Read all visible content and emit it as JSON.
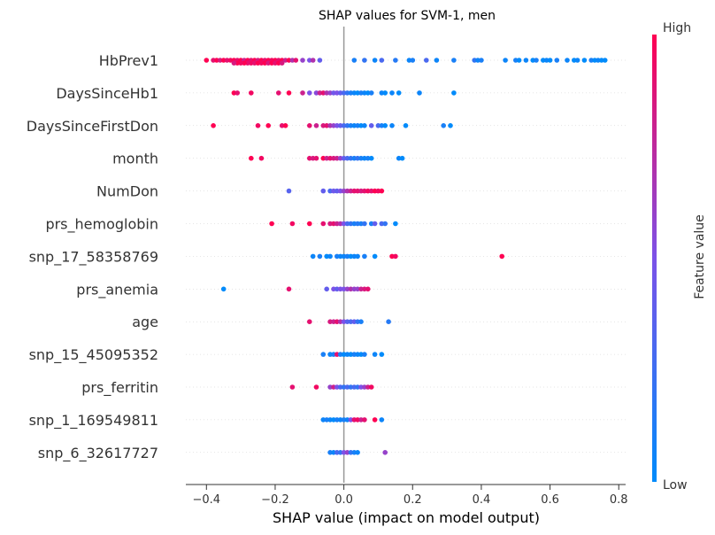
{
  "chart_data": {
    "type": "scatter",
    "subtype": "shap-beeswarm",
    "title": "SHAP values for SVM-1, men",
    "xlabel": "SHAP value (impact on model output)",
    "xlim": [
      -0.46,
      0.82
    ],
    "xticks": [
      -0.4,
      -0.2,
      0.0,
      0.2,
      0.4,
      0.6,
      0.8
    ],
    "xtick_labels": [
      "−0.4",
      "−0.2",
      "0.0",
      "0.2",
      "0.4",
      "0.6",
      "0.8"
    ],
    "colorbar": {
      "label": "Feature value",
      "high_label": "High",
      "low_label": "Low",
      "low_color": "#008bfb",
      "mid_color": "#7c52e8",
      "high_color": "#ff0052"
    },
    "zero_line": 0.0,
    "features": [
      {
        "name": "HbPrev1",
        "points": [
          [
            -0.4,
            1
          ],
          [
            -0.38,
            0.9
          ],
          [
            -0.37,
            1
          ],
          [
            -0.36,
            0.85
          ],
          [
            -0.35,
            1
          ],
          [
            -0.34,
            0.9
          ],
          [
            -0.33,
            0.95
          ],
          [
            -0.32,
            1
          ],
          [
            -0.31,
            0.9
          ],
          [
            -0.3,
            1
          ],
          [
            -0.29,
            0.8
          ],
          [
            -0.28,
            1
          ],
          [
            -0.27,
            0.9
          ],
          [
            -0.26,
            1
          ],
          [
            -0.25,
            0.85
          ],
          [
            -0.24,
            1
          ],
          [
            -0.23,
            0.9
          ],
          [
            -0.22,
            1
          ],
          [
            -0.21,
            0.95
          ],
          [
            -0.2,
            1
          ],
          [
            -0.19,
            0.9
          ],
          [
            -0.18,
            1
          ],
          [
            -0.17,
            0.8
          ],
          [
            -0.16,
            1
          ],
          [
            -0.15,
            0.7
          ],
          [
            -0.14,
            0.9
          ],
          [
            -0.12,
            0.6
          ],
          [
            -0.1,
            0.5
          ],
          [
            -0.09,
            0.7
          ],
          [
            -0.07,
            0.4
          ],
          [
            -0.27,
            0.95
          ],
          [
            -0.26,
            0.9
          ],
          [
            -0.25,
            1
          ],
          [
            -0.24,
            0.95
          ],
          [
            -0.23,
            1
          ],
          [
            -0.22,
            0.85
          ],
          [
            -0.21,
            1
          ],
          [
            -0.2,
            0.9
          ],
          [
            -0.19,
            1
          ],
          [
            -0.18,
            0.85
          ],
          [
            -0.28,
            0.9
          ],
          [
            -0.29,
            1
          ],
          [
            -0.3,
            0.95
          ],
          [
            -0.31,
            1
          ],
          [
            -0.32,
            0.85
          ],
          [
            0.03,
            0.1
          ],
          [
            0.06,
            0.2
          ],
          [
            0.09,
            0.05
          ],
          [
            0.11,
            0.3
          ],
          [
            0.15,
            0.15
          ],
          [
            0.19,
            0.05
          ],
          [
            0.2,
            0.1
          ],
          [
            0.24,
            0.3
          ],
          [
            0.27,
            0.05
          ],
          [
            0.32,
            0.1
          ],
          [
            0.38,
            0.2
          ],
          [
            0.39,
            0.05
          ],
          [
            0.4,
            0.1
          ],
          [
            0.47,
            0.05
          ],
          [
            0.5,
            0.1
          ],
          [
            0.51,
            0.0
          ],
          [
            0.53,
            0.05
          ],
          [
            0.55,
            0.0
          ],
          [
            0.56,
            0.1
          ],
          [
            0.58,
            0.0
          ],
          [
            0.59,
            0.05
          ],
          [
            0.6,
            0.0
          ],
          [
            0.62,
            0.1
          ],
          [
            0.65,
            0.05
          ],
          [
            0.67,
            0.0
          ],
          [
            0.68,
            0.05
          ],
          [
            0.7,
            0.0
          ],
          [
            0.72,
            0.1
          ],
          [
            0.73,
            0.0
          ],
          [
            0.74,
            0.05
          ],
          [
            0.75,
            0.0
          ],
          [
            0.76,
            0.0
          ]
        ]
      },
      {
        "name": "DaysSinceHb1",
        "points": [
          [
            -0.32,
            1
          ],
          [
            -0.31,
            0.9
          ],
          [
            -0.27,
            0.95
          ],
          [
            -0.19,
            0.9
          ],
          [
            -0.16,
            1
          ],
          [
            -0.12,
            0.8
          ],
          [
            -0.1,
            0.5
          ],
          [
            -0.08,
            0.55
          ],
          [
            -0.07,
            0.8
          ],
          [
            -0.06,
            0.9
          ],
          [
            -0.05,
            0.7
          ],
          [
            -0.04,
            0.6
          ],
          [
            -0.03,
            0.45
          ],
          [
            -0.02,
            0.5
          ],
          [
            -0.01,
            0.4
          ],
          [
            0.0,
            0.3
          ],
          [
            0.01,
            0.2
          ],
          [
            0.02,
            0.1
          ],
          [
            0.03,
            0.05
          ],
          [
            0.04,
            0.0
          ],
          [
            0.05,
            0.1
          ],
          [
            0.06,
            0.05
          ],
          [
            0.07,
            0.0
          ],
          [
            0.08,
            0.1
          ],
          [
            0.11,
            0.05
          ],
          [
            0.12,
            0.0
          ],
          [
            0.14,
            0.05
          ],
          [
            0.16,
            0.0
          ],
          [
            0.22,
            0.05
          ],
          [
            0.32,
            0.0
          ]
        ]
      },
      {
        "name": "DaysSinceFirstDon",
        "points": [
          [
            -0.38,
            1
          ],
          [
            -0.25,
            0.95
          ],
          [
            -0.22,
            1
          ],
          [
            -0.18,
            0.9
          ],
          [
            -0.17,
            1
          ],
          [
            -0.1,
            0.9
          ],
          [
            -0.08,
            0.8
          ],
          [
            -0.06,
            0.85
          ],
          [
            -0.05,
            0.9
          ],
          [
            -0.04,
            0.7
          ],
          [
            -0.03,
            0.6
          ],
          [
            -0.02,
            0.5
          ],
          [
            -0.01,
            0.4
          ],
          [
            0.0,
            0.3
          ],
          [
            0.01,
            0.2
          ],
          [
            0.02,
            0.1
          ],
          [
            0.03,
            0.05
          ],
          [
            0.04,
            0.1
          ],
          [
            0.05,
            0.0
          ],
          [
            0.06,
            0.05
          ],
          [
            0.08,
            0.4
          ],
          [
            0.1,
            0.3
          ],
          [
            0.11,
            0.1
          ],
          [
            0.12,
            0.0
          ],
          [
            0.14,
            0.05
          ],
          [
            0.18,
            0.0
          ],
          [
            0.29,
            0.1
          ],
          [
            0.31,
            0.0
          ]
        ]
      },
      {
        "name": "month",
        "points": [
          [
            -0.27,
            1
          ],
          [
            -0.24,
            0.95
          ],
          [
            -0.1,
            0.9
          ],
          [
            -0.09,
            0.85
          ],
          [
            -0.08,
            0.9
          ],
          [
            -0.06,
            1
          ],
          [
            -0.05,
            0.8
          ],
          [
            -0.04,
            0.9
          ],
          [
            -0.03,
            0.85
          ],
          [
            -0.02,
            0.8
          ],
          [
            -0.01,
            0.6
          ],
          [
            0.0,
            0.4
          ],
          [
            0.01,
            0.3
          ],
          [
            0.02,
            0.2
          ],
          [
            0.03,
            0.1
          ],
          [
            0.04,
            0.2
          ],
          [
            0.05,
            0.1
          ],
          [
            0.06,
            0.05
          ],
          [
            0.07,
            0.1
          ],
          [
            0.08,
            0.0
          ],
          [
            0.16,
            0.05
          ],
          [
            0.17,
            0.0
          ]
        ]
      },
      {
        "name": "NumDon",
        "points": [
          [
            -0.16,
            0.35
          ],
          [
            -0.06,
            0.4
          ],
          [
            -0.04,
            0.3
          ],
          [
            -0.03,
            0.45
          ],
          [
            -0.02,
            0.4
          ],
          [
            -0.01,
            0.5
          ],
          [
            0.0,
            0.6
          ],
          [
            0.01,
            0.7
          ],
          [
            0.02,
            0.8
          ],
          [
            0.03,
            0.9
          ],
          [
            0.04,
            0.9
          ],
          [
            0.05,
            0.85
          ],
          [
            0.06,
            0.9
          ],
          [
            0.07,
            0.95
          ],
          [
            0.08,
            0.9
          ],
          [
            0.09,
            1
          ],
          [
            0.1,
            0.95
          ],
          [
            0.11,
            1
          ]
        ]
      },
      {
        "name": "prs_hemoglobin",
        "points": [
          [
            -0.21,
            1
          ],
          [
            -0.15,
            0.95
          ],
          [
            -0.1,
            1
          ],
          [
            -0.06,
            0.9
          ],
          [
            -0.04,
            0.85
          ],
          [
            -0.03,
            0.9
          ],
          [
            -0.02,
            0.8
          ],
          [
            -0.01,
            0.7
          ],
          [
            0.0,
            0.5
          ],
          [
            0.01,
            0.3
          ],
          [
            0.02,
            0.2
          ],
          [
            0.03,
            0.1
          ],
          [
            0.04,
            0.15
          ],
          [
            0.05,
            0.1
          ],
          [
            0.06,
            0.2
          ],
          [
            0.08,
            0.1
          ],
          [
            0.09,
            0.4
          ],
          [
            0.11,
            0.3
          ],
          [
            0.12,
            0.2
          ],
          [
            0.15,
            0.0
          ]
        ]
      },
      {
        "name": "snp_17_58358769",
        "points": [
          [
            -0.09,
            0.05
          ],
          [
            -0.07,
            0.1
          ],
          [
            -0.05,
            0.0
          ],
          [
            -0.04,
            0.05
          ],
          [
            -0.02,
            0.1
          ],
          [
            -0.01,
            0.05
          ],
          [
            0.0,
            0.05
          ],
          [
            0.01,
            0.1
          ],
          [
            0.02,
            0.0
          ],
          [
            0.03,
            0.05
          ],
          [
            0.04,
            0.05
          ],
          [
            0.06,
            0.1
          ],
          [
            0.09,
            0.0
          ],
          [
            0.14,
            1
          ],
          [
            0.15,
            0.95
          ],
          [
            0.46,
            1
          ]
        ]
      },
      {
        "name": "prs_anemia",
        "points": [
          [
            -0.35,
            0.0
          ],
          [
            -0.16,
            0.9
          ],
          [
            -0.05,
            0.4
          ],
          [
            -0.03,
            0.5
          ],
          [
            -0.02,
            0.4
          ],
          [
            -0.01,
            0.5
          ],
          [
            0.0,
            0.5
          ],
          [
            0.01,
            0.6
          ],
          [
            0.02,
            0.7
          ],
          [
            0.03,
            0.6
          ],
          [
            0.04,
            0.6
          ],
          [
            0.05,
            0.8
          ],
          [
            0.06,
            0.85
          ],
          [
            0.07,
            0.9
          ]
        ]
      },
      {
        "name": "age",
        "points": [
          [
            -0.1,
            0.9
          ],
          [
            -0.04,
            0.85
          ],
          [
            -0.03,
            0.8
          ],
          [
            -0.02,
            0.9
          ],
          [
            -0.01,
            0.7
          ],
          [
            0.0,
            0.5
          ],
          [
            0.01,
            0.35
          ],
          [
            0.02,
            0.3
          ],
          [
            0.03,
            0.4
          ],
          [
            0.04,
            0.2
          ],
          [
            0.05,
            0.1
          ],
          [
            0.13,
            0.15
          ]
        ]
      },
      {
        "name": "snp_15_45095352",
        "points": [
          [
            -0.06,
            0.1
          ],
          [
            -0.04,
            0.05
          ],
          [
            -0.03,
            0.1
          ],
          [
            -0.02,
            0.9
          ],
          [
            -0.01,
            0.1
          ],
          [
            0.0,
            0.0
          ],
          [
            0.01,
            0.05
          ],
          [
            0.02,
            0.0
          ],
          [
            0.03,
            0.1
          ],
          [
            0.04,
            0.05
          ],
          [
            0.05,
            0.0
          ],
          [
            0.06,
            0.1
          ],
          [
            0.09,
            0.05
          ],
          [
            0.11,
            0.0
          ]
        ]
      },
      {
        "name": "prs_ferritin",
        "points": [
          [
            -0.15,
            0.9
          ],
          [
            -0.08,
            0.95
          ],
          [
            -0.04,
            0.6
          ],
          [
            -0.03,
            0.8
          ],
          [
            -0.02,
            0.5
          ],
          [
            -0.01,
            0.3
          ],
          [
            0.0,
            0.2
          ],
          [
            0.01,
            0.3
          ],
          [
            0.02,
            0.2
          ],
          [
            0.03,
            0.3
          ],
          [
            0.04,
            0.2
          ],
          [
            0.05,
            0.5
          ],
          [
            0.06,
            0.6
          ],
          [
            0.07,
            0.8
          ],
          [
            0.08,
            0.95
          ]
        ]
      },
      {
        "name": "snp_1_169549811",
        "points": [
          [
            -0.06,
            0.05
          ],
          [
            -0.05,
            0.1
          ],
          [
            -0.04,
            0.05
          ],
          [
            -0.03,
            0.0
          ],
          [
            -0.02,
            0.1
          ],
          [
            -0.01,
            0.05
          ],
          [
            0.0,
            0.1
          ],
          [
            0.01,
            0.05
          ],
          [
            0.02,
            0.5
          ],
          [
            0.03,
            0.9
          ],
          [
            0.04,
            0.95
          ],
          [
            0.05,
            0.8
          ],
          [
            0.06,
            0.9
          ],
          [
            0.09,
            1
          ],
          [
            0.11,
            0.05
          ]
        ]
      },
      {
        "name": "snp_6_32617727",
        "points": [
          [
            -0.04,
            0.1
          ],
          [
            -0.03,
            0.05
          ],
          [
            -0.02,
            0.3
          ],
          [
            -0.01,
            0.2
          ],
          [
            0.0,
            0.5
          ],
          [
            0.01,
            0.6
          ],
          [
            0.02,
            0.2
          ],
          [
            0.03,
            0.1
          ],
          [
            0.04,
            0.05
          ],
          [
            0.12,
            0.6
          ]
        ]
      }
    ]
  }
}
